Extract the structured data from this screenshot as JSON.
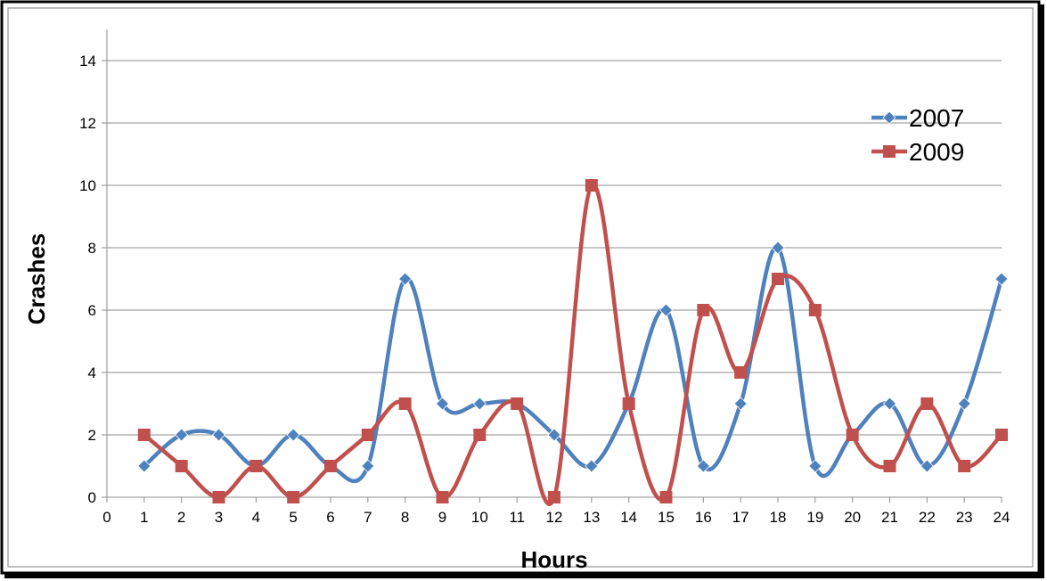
{
  "chart_data": {
    "type": "line",
    "title": "",
    "xlabel": "Hours",
    "ylabel": "Crashes",
    "x_ticks": [
      0,
      1,
      2,
      3,
      4,
      5,
      6,
      7,
      8,
      9,
      10,
      11,
      12,
      13,
      14,
      15,
      16,
      17,
      18,
      19,
      20,
      21,
      22,
      23,
      24
    ],
    "y_ticks": [
      0,
      2,
      4,
      6,
      8,
      10,
      12,
      14
    ],
    "xlim": [
      0,
      24
    ],
    "ylim": [
      0,
      15
    ],
    "grid": "horizontal",
    "smooth": true,
    "legend_position": "top-right",
    "x": [
      1,
      2,
      3,
      4,
      5,
      6,
      7,
      8,
      9,
      10,
      11,
      12,
      13,
      14,
      15,
      16,
      17,
      18,
      19,
      20,
      21,
      22,
      23,
      24
    ],
    "series": [
      {
        "name": "2007",
        "color": "#4F81BD",
        "marker": "diamond",
        "values": [
          1,
          2,
          2,
          1,
          2,
          1,
          1,
          7,
          3,
          3,
          3,
          2,
          1,
          3,
          6,
          1,
          3,
          8,
          1,
          2,
          3,
          1,
          3,
          7
        ]
      },
      {
        "name": "2009",
        "color": "#C0504D",
        "marker": "square",
        "values": [
          2,
          1,
          0,
          1,
          0,
          1,
          2,
          3,
          0,
          2,
          3,
          0,
          10,
          3,
          0,
          6,
          4,
          7,
          6,
          2,
          1,
          3,
          1,
          2
        ]
      }
    ]
  }
}
